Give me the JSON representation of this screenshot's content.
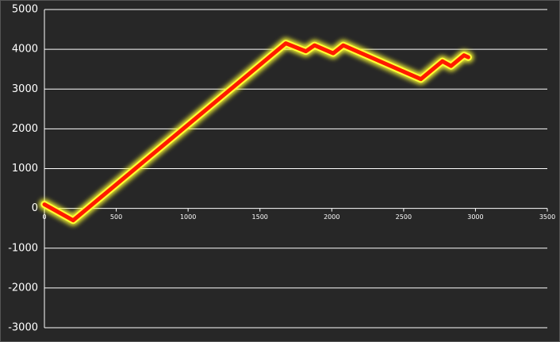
{
  "chart_data": {
    "type": "line",
    "x": [
      0,
      200,
      1680,
      1820,
      1880,
      2010,
      2080,
      2620,
      2770,
      2830,
      2920,
      2950
    ],
    "series": [
      {
        "color": "#ff1a00",
        "glow_color": "#ffff33",
        "values": [
          100,
          -300,
          4150,
          3950,
          4100,
          3900,
          4100,
          3250,
          3700,
          3580,
          3850,
          3800
        ]
      }
    ],
    "xlim": [
      0,
      3500
    ],
    "xticks": [
      0,
      500,
      1000,
      1500,
      2000,
      2500,
      3000,
      3500
    ],
    "ylim": [
      -3000,
      5000
    ],
    "yticks": [
      -3000,
      -2000,
      -1000,
      0,
      1000,
      2000,
      3000,
      4000,
      5000
    ],
    "grid": true
  }
}
